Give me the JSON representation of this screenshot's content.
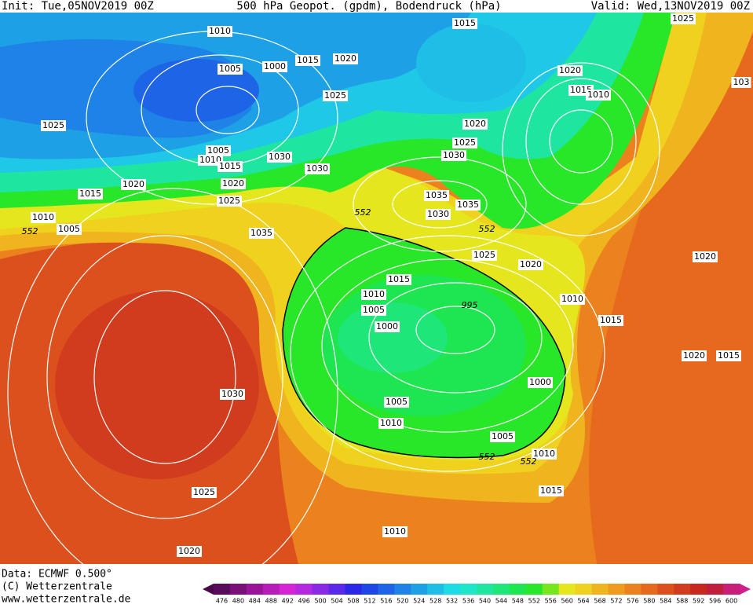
{
  "header": {
    "init": "Init: Tue,05NOV2019 00Z",
    "title": "500 hPa Geopot. (gpdm), Bodendruck (hPa)",
    "valid": "Valid: Wed,13NOV2019 00Z"
  },
  "isobar_labels": [
    "1010",
    "1005",
    "1000",
    "1015",
    "1020",
    "1025",
    "1025",
    "1005",
    "1010",
    "1015",
    "1030",
    "1030",
    "1020",
    "1020",
    "1025",
    "1015",
    "1010",
    "1005",
    "552",
    "1035",
    "552",
    "1015",
    "1025",
    "1020",
    "1015",
    "1010",
    "1020",
    "1025",
    "1030",
    "1035",
    "1035",
    "1030",
    "552",
    "1025",
    "1020",
    "1015",
    "1010",
    "1005",
    "1000",
    "995",
    "1010",
    "1015",
    "1020",
    "1020",
    "1015",
    "1030",
    "1000",
    "1005",
    "1010",
    "1005",
    "1010",
    "552",
    "552",
    "1015",
    "1025",
    "1020",
    "1010",
    "103"
  ],
  "colorbar": {
    "values": [
      476,
      480,
      484,
      488,
      492,
      496,
      500,
      504,
      508,
      512,
      516,
      520,
      524,
      528,
      532,
      536,
      540,
      544,
      548,
      552,
      556,
      560,
      564,
      568,
      572,
      576,
      580,
      584,
      588,
      592,
      596,
      600
    ],
    "colors": [
      "#5a0a5a",
      "#7a0f7a",
      "#9a149a",
      "#b81cb8",
      "#d424d4",
      "#b428e0",
      "#8a28e6",
      "#5a28e8",
      "#2a28e6",
      "#1e46e6",
      "#1e64e6",
      "#1e82e6",
      "#1ea0e6",
      "#1ebee6",
      "#1edce6",
      "#1ee6c8",
      "#1ee6a0",
      "#1ee678",
      "#1ee650",
      "#28e628",
      "#78e61e",
      "#e6e61e",
      "#f0d21e",
      "#f0b41e",
      "#f09a1e",
      "#ec821e",
      "#e6691e",
      "#dc501e",
      "#d23c1e",
      "#c8281e",
      "#c01e3c",
      "#c81e78"
    ]
  },
  "footer": {
    "data_source": "Data: ECMWF   0.500°",
    "copyright": "(C) Wetterzentrale",
    "url": "www.wetterzentrale.de"
  }
}
